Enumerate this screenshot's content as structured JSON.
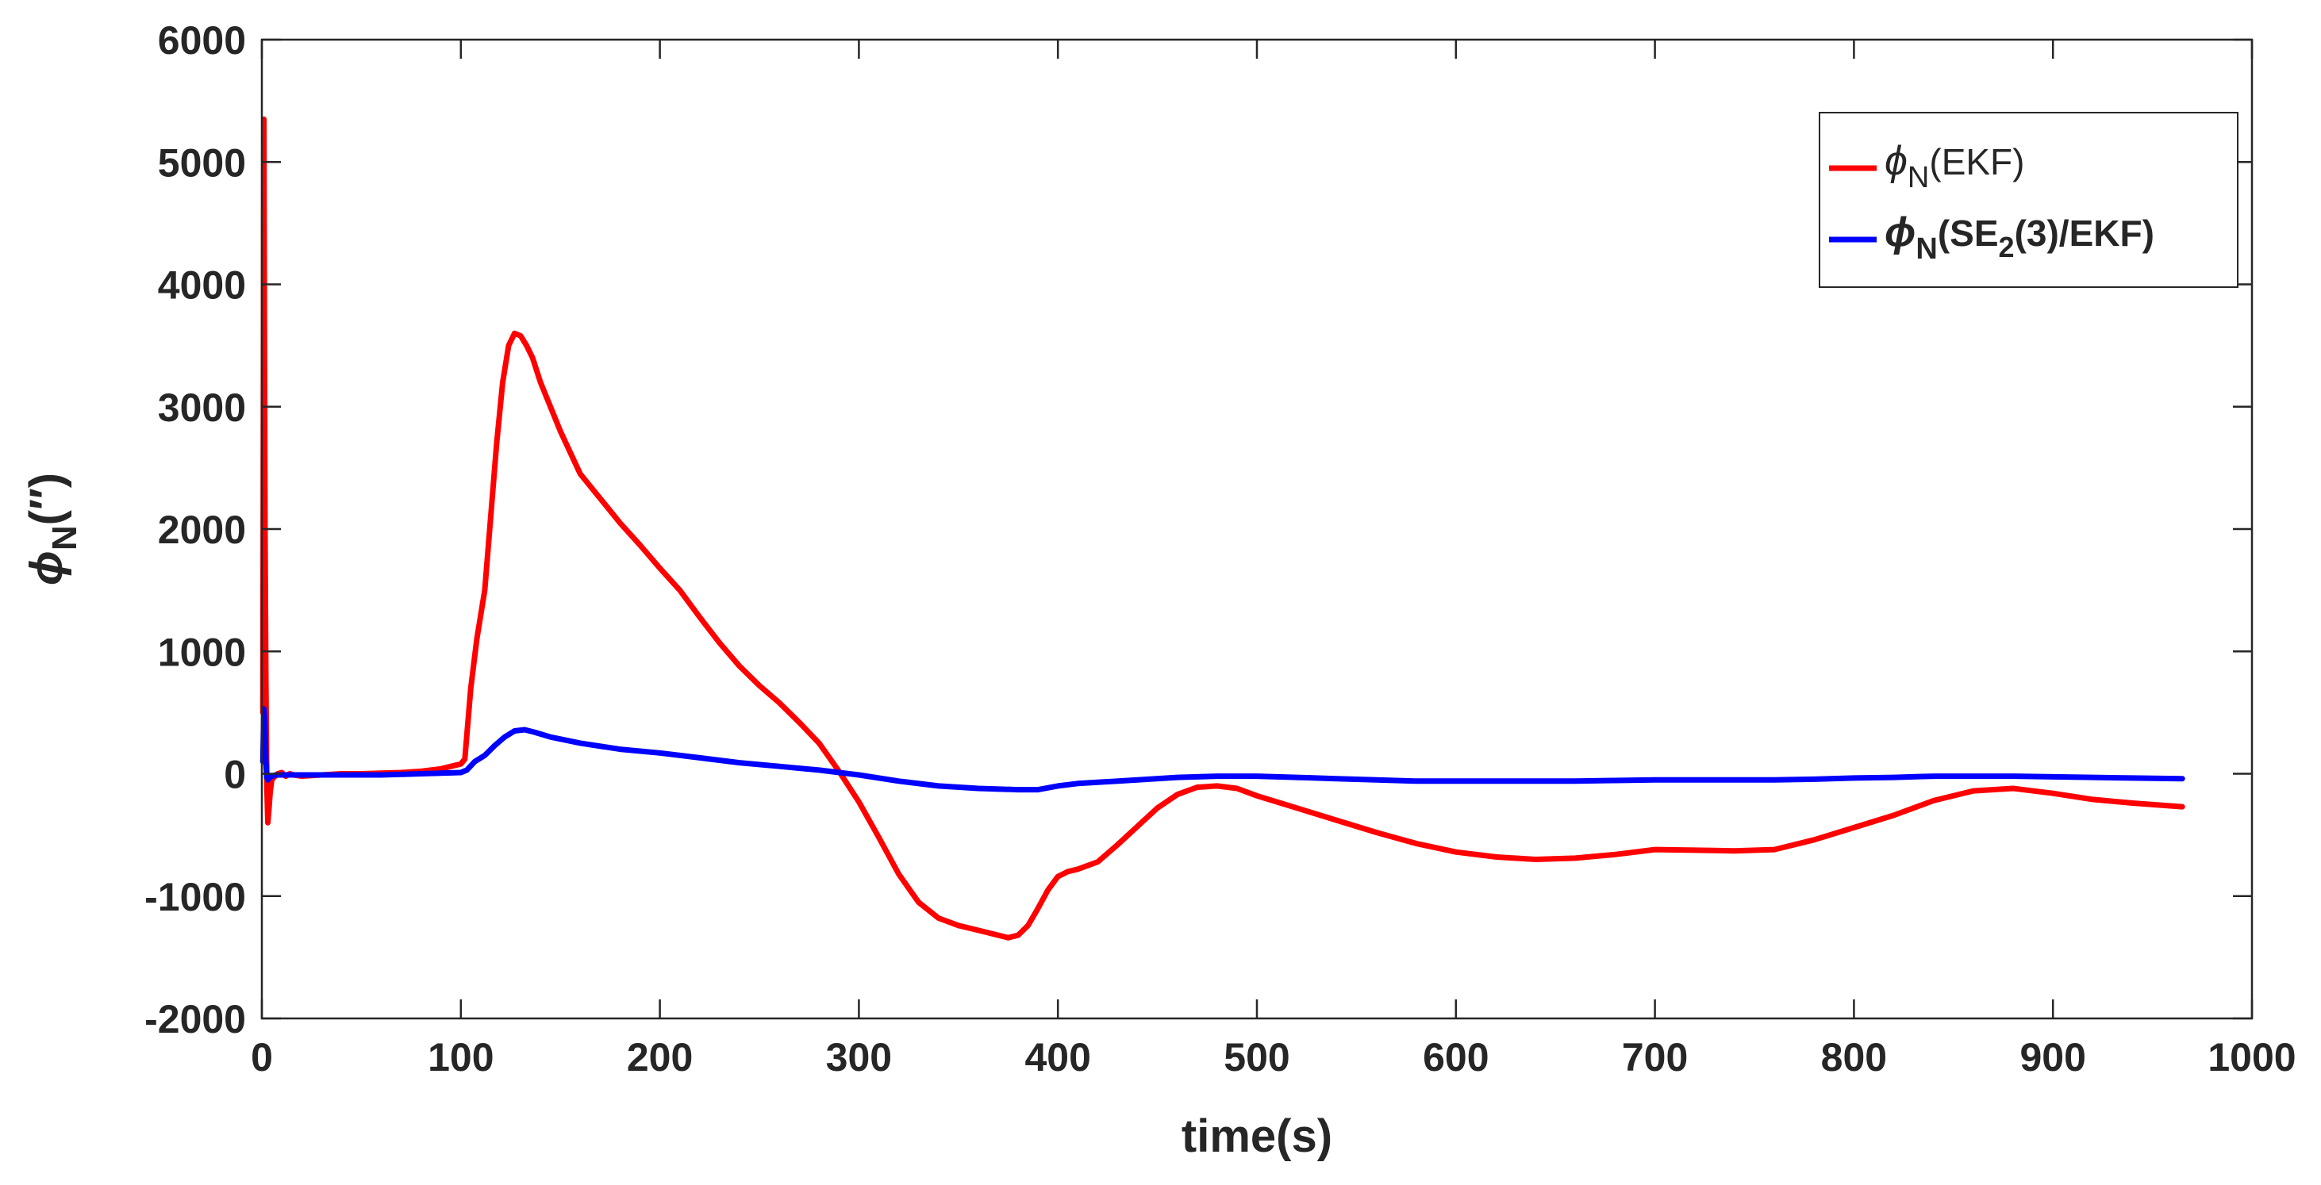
{
  "chart_data": {
    "type": "line",
    "title": "",
    "xlabel": "time(s)",
    "ylabel": {
      "symbol": "ϕ",
      "subscript": "N",
      "suffix": "(′′)"
    },
    "xlim": [
      0,
      1000
    ],
    "ylim": [
      -2000,
      6000
    ],
    "xticks": [
      0,
      100,
      200,
      300,
      400,
      500,
      600,
      700,
      800,
      900,
      1000
    ],
    "yticks": [
      -2000,
      -1000,
      0,
      1000,
      2000,
      3000,
      4000,
      5000,
      6000
    ],
    "grid": false,
    "legend_position": "top-right",
    "series": [
      {
        "name": "ϕN(EKF)",
        "label_symbol": "ϕ",
        "label_sub": "N",
        "label_rest": "(EKF)",
        "label_bold": false,
        "color": "#ff0000",
        "x": [
          0.5,
          1.0,
          1.3,
          1.6,
          2.0,
          2.5,
          3.0,
          3.5,
          4.2,
          5.0,
          6.0,
          8.0,
          10.0,
          12.0,
          14.0,
          16.0,
          20.0,
          25.0,
          30.0,
          40.0,
          50.0,
          60.0,
          70.0,
          80.0,
          90.0,
          95.0,
          100.0,
          102.0,
          105.0,
          108.0,
          112.0,
          115.0,
          118.0,
          121.0,
          124.0,
          127.0,
          130.0,
          133.0,
          136.0,
          140.0,
          150.0,
          160.0,
          170.0,
          180.0,
          190.0,
          200.0,
          210.0,
          220.0,
          230.0,
          240.0,
          250.0,
          260.0,
          270.0,
          280.0,
          290.0,
          300.0,
          310.0,
          320.0,
          330.0,
          340.0,
          350.0,
          360.0,
          370.0,
          375.0,
          380.0,
          385.0,
          390.0,
          395.0,
          400.0,
          405.0,
          410.0,
          420.0,
          430.0,
          440.0,
          450.0,
          460.0,
          470.0,
          480.0,
          490.0,
          500.0,
          520.0,
          540.0,
          560.0,
          580.0,
          600.0,
          620.0,
          640.0,
          660.0,
          680.0,
          700.0,
          720.0,
          740.0,
          760.0,
          780.0,
          800.0,
          820.0,
          840.0,
          860.0,
          880.0,
          900.0,
          920.0,
          940.0,
          965.0
        ],
        "y": [
          500,
          5350,
          3500,
          2000,
          800,
          -100,
          -400,
          -300,
          -150,
          -50,
          -30,
          0,
          10,
          -20,
          0,
          -10,
          -20,
          -15,
          -10,
          0,
          0,
          5,
          10,
          20,
          40,
          60,
          80,
          120,
          700,
          1100,
          1500,
          2100,
          2700,
          3200,
          3500,
          3600,
          3580,
          3500,
          3400,
          3200,
          2800,
          2450,
          2250,
          2050,
          1870,
          1680,
          1500,
          1280,
          1070,
          880,
          720,
          580,
          420,
          250,
          20,
          -230,
          -520,
          -820,
          -1050,
          -1180,
          -1240,
          -1280,
          -1320,
          -1340,
          -1320,
          -1240,
          -1100,
          -950,
          -840,
          -800,
          -780,
          -720,
          -580,
          -430,
          -280,
          -170,
          -110,
          -100,
          -120,
          -180,
          -280,
          -380,
          -480,
          -570,
          -640,
          -680,
          -700,
          -690,
          -660,
          -620,
          -625,
          -630,
          -620,
          -540,
          -440,
          -340,
          -220,
          -140,
          -120,
          -160,
          -210,
          -240,
          -270
        ]
      },
      {
        "name": "ϕN(SE2(3)/EKF)",
        "label_symbol": "ϕ",
        "label_sub": "N",
        "label_rest_a": "(SE",
        "label_rest_sub": "2",
        "label_rest_b": "(3)/EKF)",
        "label_bold": true,
        "color": "#0000ff",
        "x": [
          0.5,
          1.0,
          1.5,
          2.0,
          2.5,
          3.0,
          4.0,
          5.0,
          7.0,
          10.0,
          15.0,
          20.0,
          25.0,
          30.0,
          40.0,
          50.0,
          60.0,
          70.0,
          80.0,
          90.0,
          100.0,
          103.0,
          107.0,
          112.0,
          117.0,
          122.0,
          127.0,
          132.0,
          137.0,
          145.0,
          160.0,
          180.0,
          200.0,
          220.0,
          240.0,
          260.0,
          280.0,
          300.0,
          320.0,
          340.0,
          360.0,
          380.0,
          390.0,
          400.0,
          410.0,
          420.0,
          440.0,
          460.0,
          480.0,
          500.0,
          520.0,
          540.0,
          560.0,
          580.0,
          600.0,
          620.0,
          640.0,
          660.0,
          680.0,
          700.0,
          720.0,
          740.0,
          760.0,
          780.0,
          800.0,
          820.0,
          840.0,
          860.0,
          880.0,
          900.0,
          920.0,
          940.0,
          965.0
        ],
        "y": [
          100,
          530,
          400,
          100,
          -30,
          -50,
          -30,
          -20,
          -10,
          -10,
          -10,
          -10,
          -10,
          -10,
          -10,
          -10,
          -10,
          -5,
          0,
          5,
          10,
          30,
          100,
          150,
          230,
          300,
          350,
          360,
          340,
          300,
          250,
          200,
          170,
          130,
          90,
          60,
          30,
          -10,
          -60,
          -100,
          -120,
          -130,
          -130,
          -100,
          -80,
          -70,
          -50,
          -30,
          -20,
          -20,
          -30,
          -40,
          -50,
          -60,
          -60,
          -60,
          -60,
          -60,
          -55,
          -50,
          -50,
          -50,
          -50,
          -45,
          -35,
          -30,
          -20,
          -20,
          -20,
          -25,
          -30,
          -35,
          -40
        ]
      }
    ]
  }
}
